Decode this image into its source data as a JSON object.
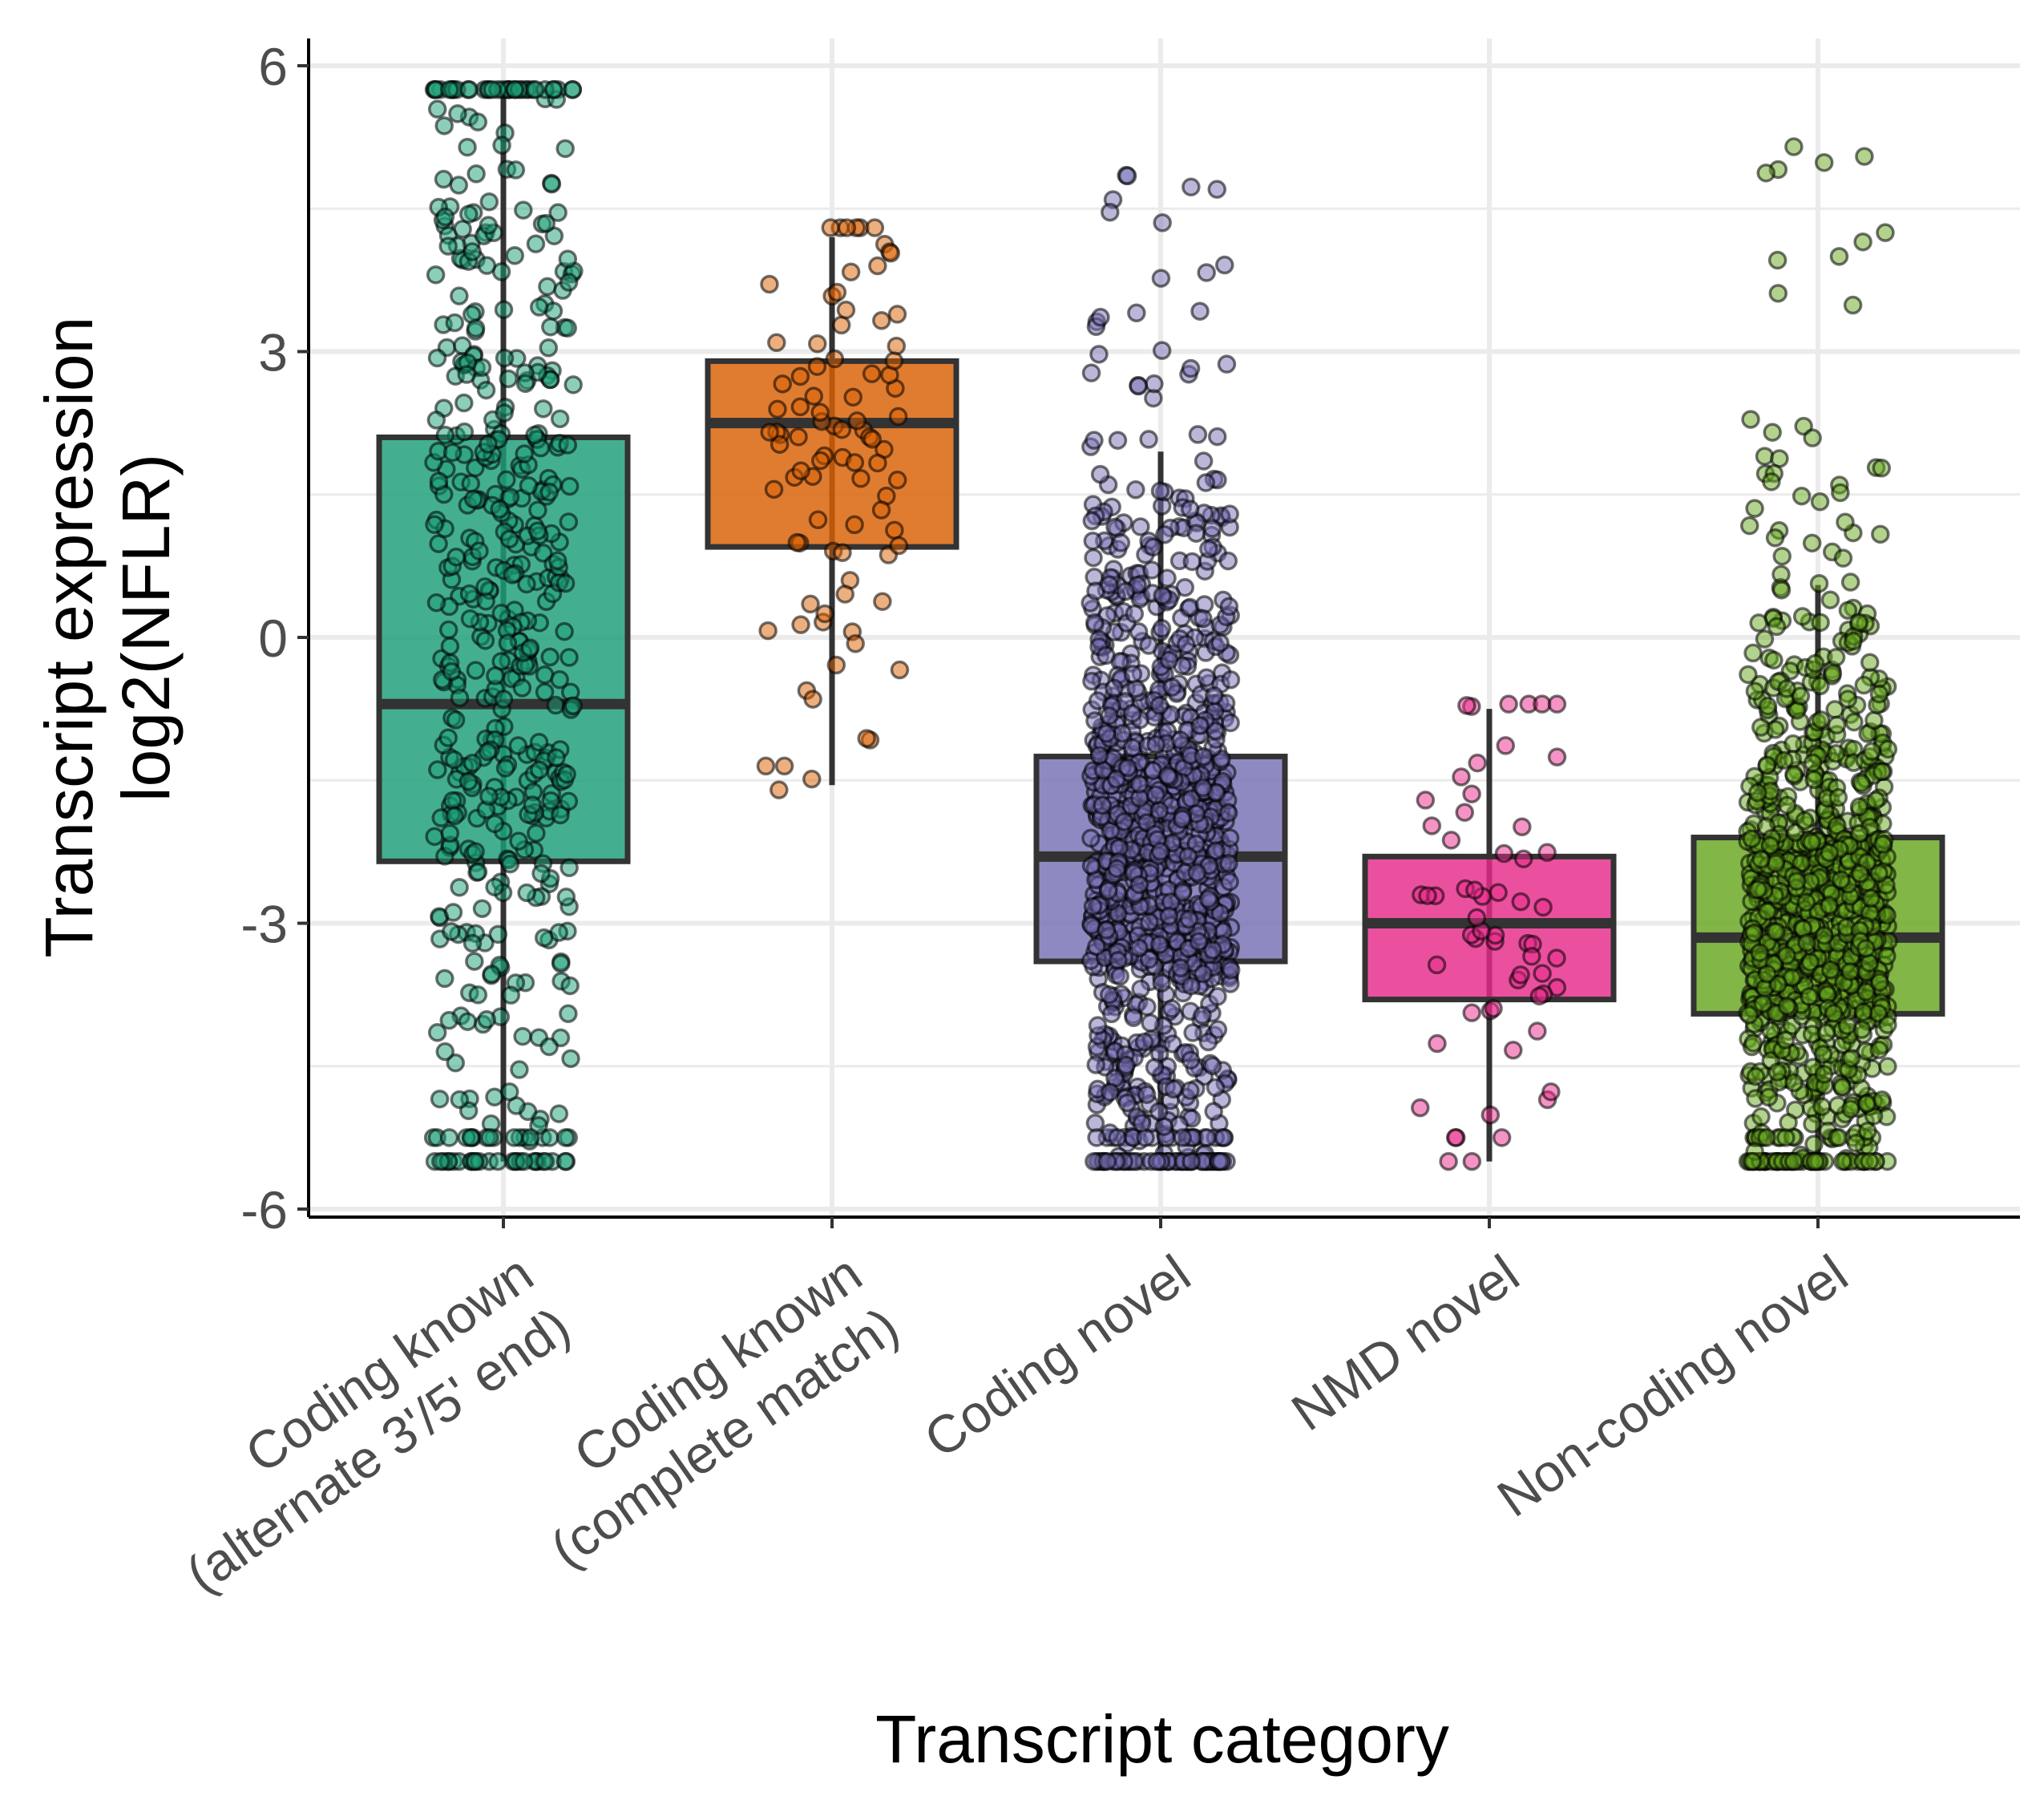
{
  "chart_data": {
    "type": "box",
    "xlabel": "Transcript category",
    "ylabel_lines": [
      "Transcript expression",
      "log2(NFLR)"
    ],
    "ylim": [
      -6,
      6
    ],
    "yticks": [
      "6",
      "3",
      "0",
      "-3",
      "-6"
    ],
    "ytick_values": [
      6,
      3,
      0,
      -3,
      -6
    ],
    "grid": true,
    "legend": "none",
    "overlay": "jittered points",
    "categories": [
      {
        "label_lines": [
          "Coding known",
          "(alternate 3'/5' end)"
        ],
        "color": "#1b9e77",
        "q1": -2.35,
        "median": -0.7,
        "q3": 2.1,
        "whisker_low": -5.5,
        "whisker_high": 5.75,
        "point_count": 520,
        "point_range": [
          -5.5,
          5.75
        ]
      },
      {
        "label_lines": [
          "Coding known",
          "(complete match)"
        ],
        "color": "#d95f02",
        "q1": 0.95,
        "median": 2.25,
        "q3": 2.9,
        "whisker_low": -1.55,
        "whisker_high": 4.2,
        "point_count": 90,
        "point_range": [
          -1.6,
          4.3
        ]
      },
      {
        "label_lines": [
          "Coding novel"
        ],
        "color": "#7570b3",
        "q1": -3.4,
        "median": -2.3,
        "q3": -1.25,
        "whisker_low": -5.5,
        "whisker_high": 1.95,
        "point_count": 1100,
        "point_range": [
          -5.5,
          4.85
        ]
      },
      {
        "label_lines": [
          "NMD novel"
        ],
        "color": "#e7298a",
        "q1": -3.8,
        "median": -3.0,
        "q3": -2.3,
        "whisker_low": -5.5,
        "whisker_high": -0.75,
        "point_count": 60,
        "point_range": [
          -5.5,
          -0.7
        ]
      },
      {
        "label_lines": [
          "Non-coding novel"
        ],
        "color": "#66a61e",
        "q1": -3.95,
        "median": -3.15,
        "q3": -2.1,
        "whisker_low": -5.5,
        "whisker_high": 0.55,
        "point_count": 1000,
        "point_range": [
          -5.5,
          5.15
        ]
      }
    ]
  }
}
